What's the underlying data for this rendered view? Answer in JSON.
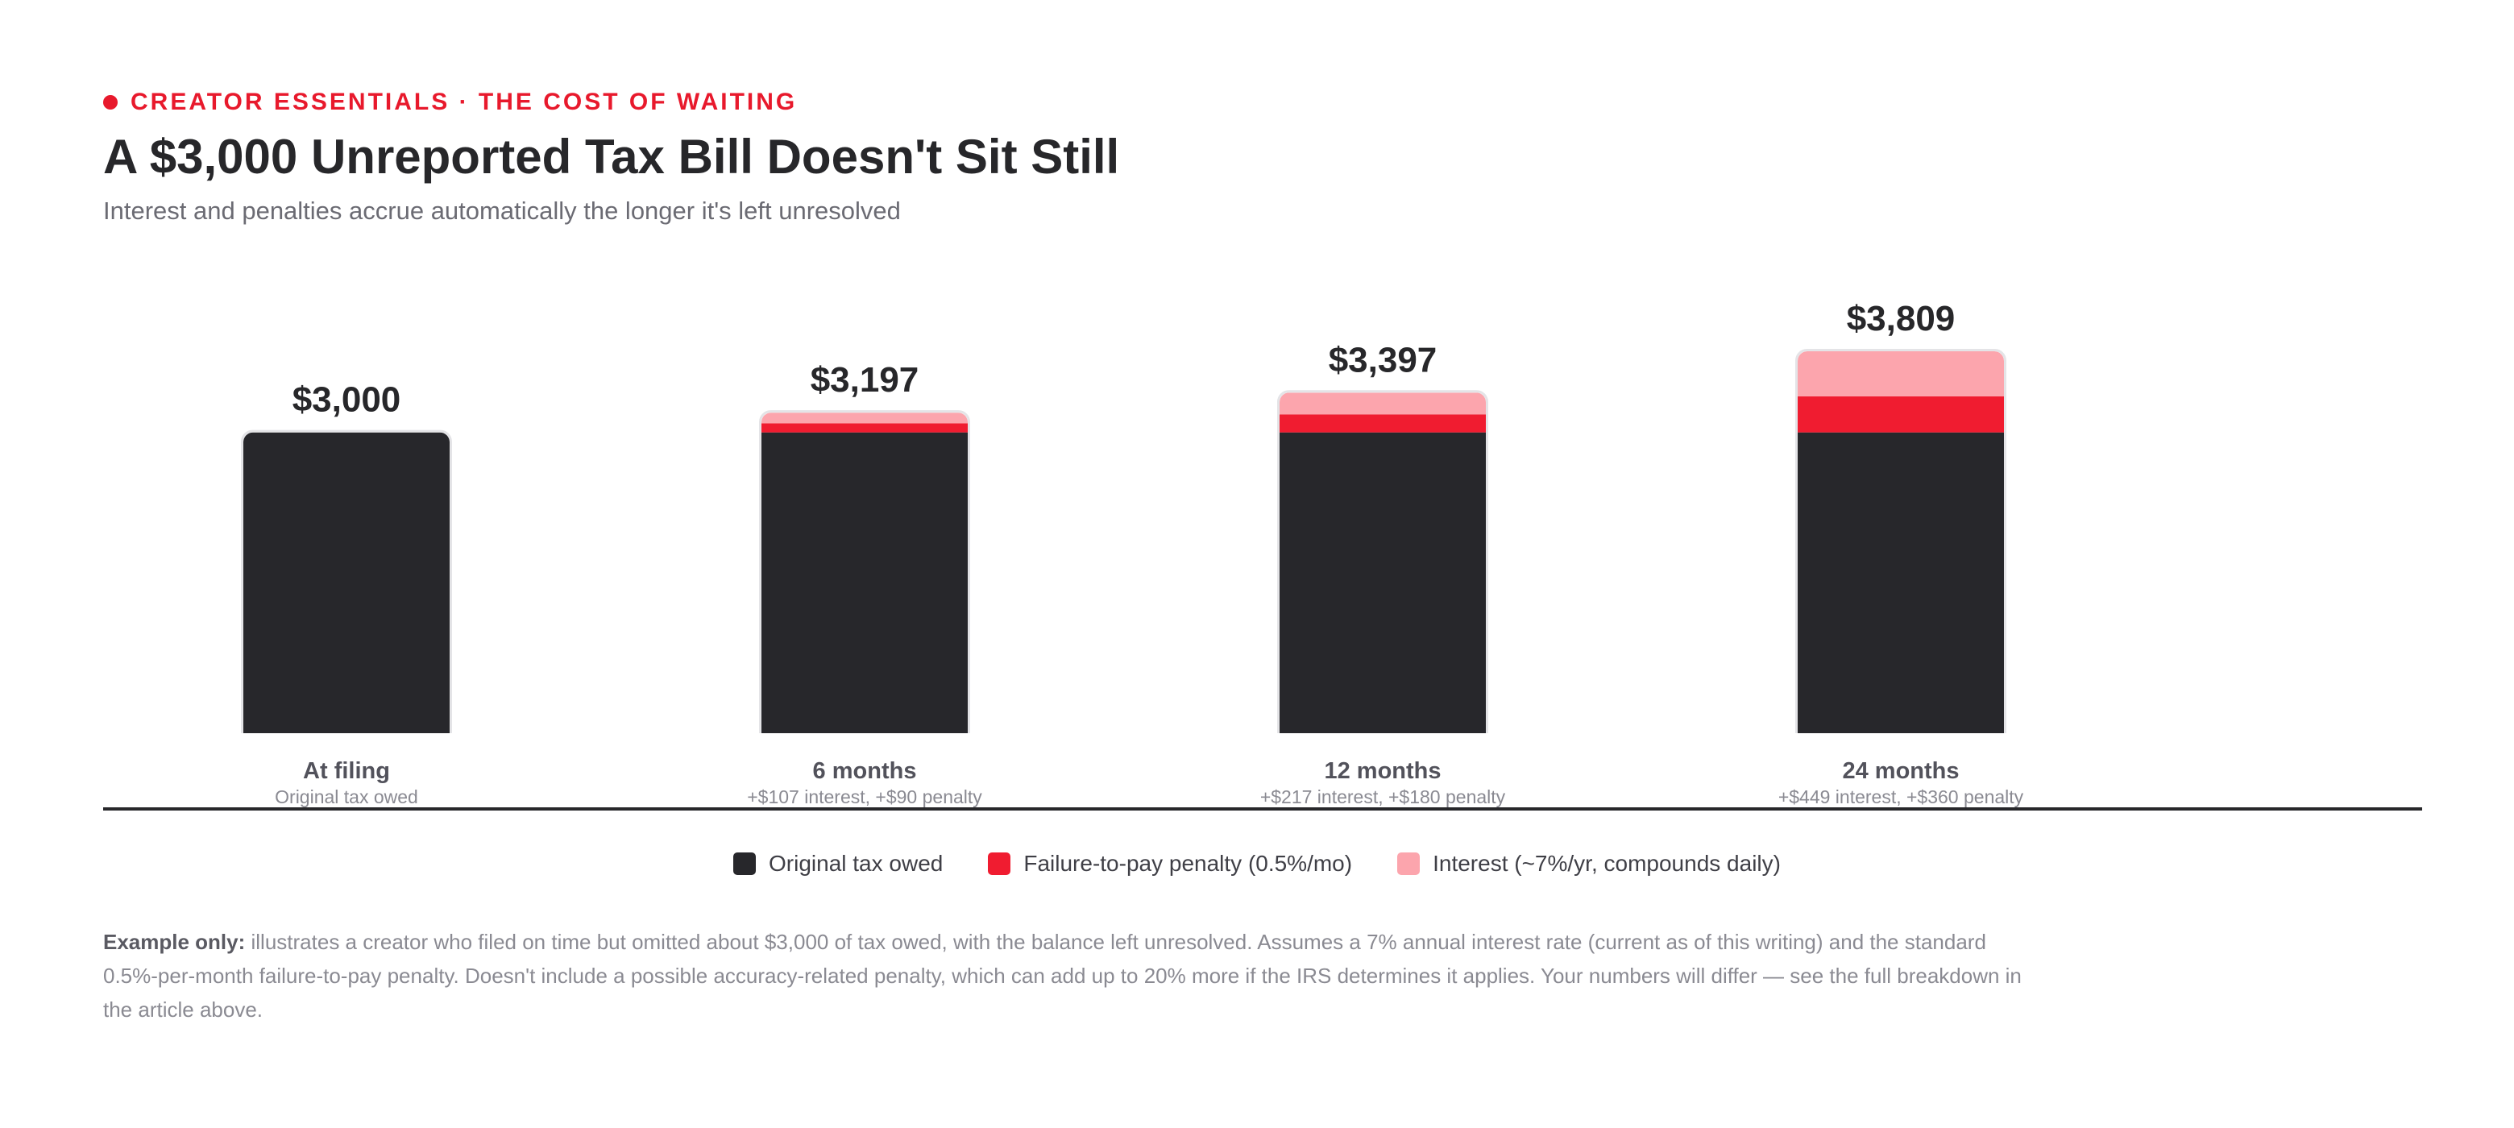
{
  "header": {
    "eyebrow": "CREATOR ESSENTIALS · THE COST OF WAITING",
    "title": "A $3,000 Unreported Tax Bill Doesn't Sit Still",
    "subtitle": "Interest and penalties accrue automatically the longer it's left unresolved"
  },
  "chart_data": {
    "type": "bar",
    "stacked": true,
    "categories": [
      "At filing",
      "6 months",
      "12 months",
      "24 months"
    ],
    "category_notes": [
      "Original tax owed",
      "+$107 interest, +$90 penalty",
      "+$217 interest, +$180 penalty",
      "+$449 interest, +$360 penalty"
    ],
    "totals": [
      3000,
      3197,
      3397,
      3809
    ],
    "total_labels": [
      "$3,000",
      "$3,197",
      "$3,397",
      "$3,809"
    ],
    "series": [
      {
        "name": "Original tax owed",
        "values": [
          3000,
          3000,
          3000,
          3000
        ],
        "color": "#27272b"
      },
      {
        "name": "Failure-to-pay penalty (0.5%/mo)",
        "values": [
          0,
          90,
          180,
          360
        ],
        "color": "#f01c30"
      },
      {
        "name": "Interest (~7%/yr, compounds daily)",
        "values": [
          0,
          107,
          217,
          449
        ],
        "color": "#fca5ad"
      }
    ],
    "ylim": [
      0,
      3809
    ],
    "legend_position": "bottom-center",
    "grid": false
  },
  "footnote": {
    "lead": "Example only:",
    "text": " illustrates a creator who filed on time but omitted about $3,000 of tax owed, with the balance left unresolved. Assumes a 7% annual interest rate (current as of this writing) and the standard 0.5%-per-month failure-to-pay penalty. Doesn't include a possible accuracy-related penalty, which can add up to 20% more if the IRS determines it applies. Your numbers will differ — see the full breakdown in the article above."
  }
}
